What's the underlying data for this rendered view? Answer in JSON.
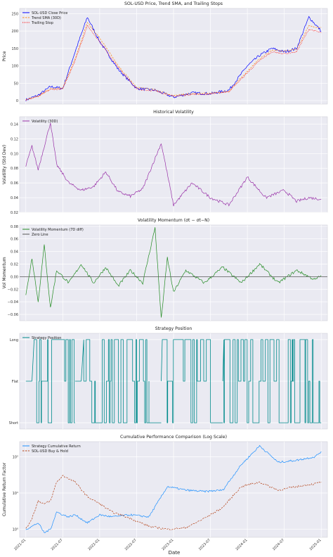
{
  "figure": {
    "xlabel": "Date"
  },
  "chart_data": [
    {
      "type": "line",
      "title": "SOL-USD Price, Trend SMA, and Trailing Stops",
      "ylabel": "Price",
      "ylim": [
        -10,
        265
      ],
      "yticks": [
        0,
        50,
        100,
        150,
        200,
        250
      ],
      "ytick_labels": [
        "0",
        "50",
        "100",
        "150",
        "200",
        "250"
      ],
      "grid": true,
      "legend": "top-left",
      "x_dates": [
        "2021-01",
        "2021-03",
        "2021-05",
        "2021-07",
        "2021-09",
        "2021-11",
        "2022-01",
        "2022-04",
        "2022-07",
        "2022-10",
        "2023-01",
        "2023-04",
        "2023-07",
        "2023-10",
        "2024-01",
        "2024-03",
        "2024-05",
        "2024-07",
        "2024-09",
        "2024-11",
        "2025-01"
      ],
      "series": [
        {
          "name": "SOL-USD Close Price",
          "color": "#0000ff",
          "style": "solid",
          "values": [
            2,
            15,
            40,
            35,
            140,
            240,
            170,
            90,
            35,
            30,
            10,
            22,
            20,
            30,
            100,
            130,
            150,
            140,
            150,
            240,
            200
          ]
        },
        {
          "name": "Trend SMA (30D)",
          "color": "#ff8c1a",
          "style": "dashed",
          "values": [
            2,
            12,
            35,
            36,
            120,
            225,
            180,
            100,
            38,
            32,
            14,
            20,
            21,
            27,
            85,
            120,
            145,
            142,
            148,
            215,
            210
          ]
        },
        {
          "name": "Trailing Stop",
          "color": "#ff0000",
          "style": "dotted-markers",
          "values": [
            2,
            12,
            32,
            33,
            115,
            215,
            170,
            95,
            33,
            28,
            12,
            18,
            19,
            26,
            80,
            115,
            140,
            135,
            140,
            205,
            195
          ]
        }
      ]
    },
    {
      "type": "line",
      "title": "Historical Volatility",
      "ylabel": "Volatility (Std Dev)",
      "ylim": [
        0.02,
        0.15
      ],
      "yticks": [
        0.02,
        0.04,
        0.06,
        0.08,
        0.1,
        0.12,
        0.14
      ],
      "ytick_labels": [
        "0.02",
        "0.04",
        "0.06",
        "0.08",
        "0.10",
        "0.12",
        "0.14"
      ],
      "grid": true,
      "legend": "top-left",
      "x_dates": [
        "2021-01",
        "2021-02",
        "2021-03",
        "2021-05",
        "2021-06",
        "2021-08",
        "2021-10",
        "2021-12",
        "2022-02",
        "2022-04",
        "2022-06",
        "2022-08",
        "2022-11",
        "2023-01",
        "2023-04",
        "2023-07",
        "2023-10",
        "2024-01",
        "2024-04",
        "2024-07",
        "2024-09",
        "2024-11",
        "2025-01"
      ],
      "series": [
        {
          "name": "Volatility (30D)",
          "color": "#9932a8",
          "style": "solid",
          "values": [
            0.083,
            0.11,
            0.078,
            0.142,
            0.085,
            0.06,
            0.05,
            0.055,
            0.075,
            0.048,
            0.042,
            0.052,
            0.114,
            0.03,
            0.06,
            0.04,
            0.03,
            0.068,
            0.04,
            0.05,
            0.035,
            0.04,
            0.038
          ]
        }
      ]
    },
    {
      "type": "line",
      "title": "Volatility Momentum (σt − σt−N)",
      "ylabel": "Vol Momentum",
      "ylim": [
        -0.07,
        0.082
      ],
      "yticks": [
        -0.06,
        -0.04,
        -0.02,
        0.0,
        0.02,
        0.04,
        0.06,
        0.08
      ],
      "ytick_labels": [
        "−0.06",
        "−0.04",
        "−0.02",
        "0.00",
        "0.02",
        "0.04",
        "0.06",
        "0.08"
      ],
      "grid": true,
      "legend": "top-left",
      "x_dates": [
        "2021-01",
        "2021-02",
        "2021-03",
        "2021-04",
        "2021-05",
        "2021-06",
        "2021-08",
        "2021-10",
        "2021-12",
        "2022-02",
        "2022-04",
        "2022-06",
        "2022-08",
        "2022-10",
        "2022-11",
        "2022-12",
        "2023-01",
        "2023-03",
        "2023-06",
        "2023-09",
        "2023-12",
        "2024-03",
        "2024-06",
        "2024-09",
        "2024-12",
        "2025-01"
      ],
      "series": [
        {
          "name": "Volatility Momentum (7D diff)",
          "color": "#228b22",
          "style": "solid",
          "values": [
            -0.03,
            0.03,
            -0.04,
            0.05,
            -0.05,
            0.01,
            -0.01,
            0.02,
            -0.01,
            0.015,
            -0.015,
            0.01,
            -0.01,
            0.078,
            -0.067,
            0.03,
            -0.025,
            0.01,
            -0.01,
            0.015,
            -0.01,
            0.02,
            -0.01,
            0.01,
            -0.005,
            0.002
          ]
        },
        {
          "name": "Zero Line",
          "color": "#555555",
          "style": "solid",
          "values": [
            0,
            0
          ]
        }
      ]
    },
    {
      "type": "line",
      "title": "Strategy Position",
      "ylim": [
        -1.15,
        1.15
      ],
      "yticks": [
        -1,
        0,
        1
      ],
      "ytick_labels": [
        "Short",
        "Flat",
        "Long"
      ],
      "grid": true,
      "legend": "top-left",
      "series": [
        {
          "name": "Strategy Position",
          "color": "#008b8b",
          "style": "step",
          "segments": [
            {
              "from": "2021-01",
              "to": "2021-02",
              "level": 0
            },
            {
              "from": "2021-02",
              "to": "2021-09",
              "level": "switching"
            },
            {
              "from": "2021-09",
              "to": "2021-10",
              "level": 0
            },
            {
              "from": "2021-10",
              "to": "2022-09",
              "level": "switching"
            },
            {
              "from": "2022-09",
              "to": "2022-11",
              "level": -1
            },
            {
              "from": "2022-11",
              "to": "2023-07",
              "level": "switching"
            },
            {
              "from": "2023-07",
              "to": "2023-09",
              "level": -1
            },
            {
              "from": "2023-09",
              "to": "2025-01",
              "level": "switching"
            }
          ]
        }
      ]
    },
    {
      "type": "line",
      "title": "Cumulative Performance Comparison (Log Scale)",
      "ylabel": "Cumulative Return Factor",
      "yscale": "log",
      "ylim": [
        0.6,
        260
      ],
      "yticks": [
        1,
        10,
        100
      ],
      "ytick_labels": [
        "10⁰",
        "10¹",
        "10²"
      ],
      "grid": true,
      "legend": "top-left",
      "x_dates": [
        "2021-01",
        "2021-02",
        "2021-03",
        "2021-04",
        "2021-05",
        "2021-06",
        "2021-07",
        "2021-08",
        "2021-09",
        "2021-11",
        "2022-01",
        "2022-03",
        "2022-06",
        "2022-09",
        "2022-12",
        "2023-03",
        "2023-06",
        "2023-09",
        "2023-12",
        "2024-03",
        "2024-06",
        "2024-09",
        "2024-12",
        "2025-01"
      ],
      "series": [
        {
          "name": "Strategy Cumulative Return",
          "color": "#1e90ff",
          "style": "solid",
          "values": [
            1,
            1.2,
            1.5,
            0.8,
            1,
            3,
            2.5,
            2.2,
            2.5,
            1.5,
            2.5,
            2.2,
            2.5,
            2.2,
            15,
            12,
            11,
            12,
            60,
            200,
            70,
            80,
            100,
            140
          ]
        },
        {
          "name": "SOL-USD Buy & Hold",
          "color": "#b5451b",
          "style": "dashed",
          "values": [
            1,
            2,
            6,
            5,
            6,
            20,
            30,
            25,
            20,
            8,
            5,
            3,
            2,
            1.2,
            1,
            1.1,
            2,
            4,
            15,
            20,
            12,
            15,
            18,
            20
          ]
        }
      ]
    }
  ],
  "shared_x": {
    "range": [
      "2020-12",
      "2025-02"
    ],
    "ticks": [
      "2021-01",
      "2021-07",
      "2022-01",
      "2022-07",
      "2023-01",
      "2023-07",
      "2024-01",
      "2024-07",
      "2025-01"
    ],
    "tick_labels": [
      "2021-01",
      "2021-07",
      "2022-01",
      "2022-07",
      "2023-01",
      "2023-07",
      "2024-01",
      "2024-07",
      "2025-01"
    ]
  }
}
